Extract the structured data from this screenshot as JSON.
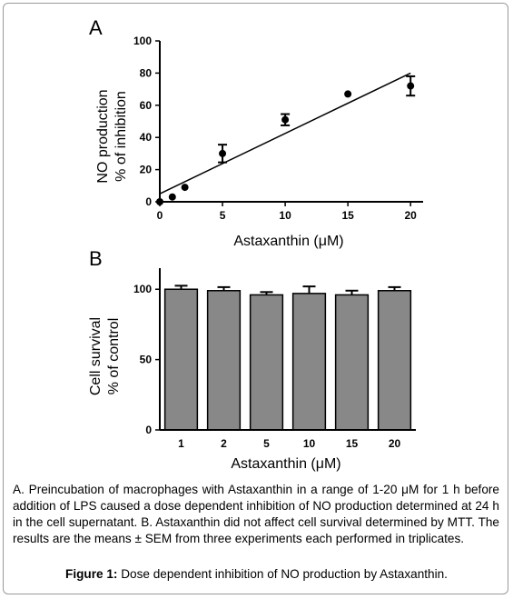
{
  "chart_data": [
    {
      "type": "scatter",
      "panel_label": "A",
      "x": [
        0,
        1,
        2,
        5,
        10,
        15,
        20
      ],
      "y": [
        0,
        3,
        9,
        30,
        51,
        67,
        72
      ],
      "yerr": [
        0,
        0,
        0,
        5.5,
        3.5,
        0,
        6
      ],
      "trendline": {
        "x": [
          0,
          20
        ],
        "y": [
          5,
          80
        ]
      },
      "xlabel": "Astaxanthin (μM)",
      "ylabel_line1": "NO production",
      "ylabel_line2": "% of inhibition",
      "xticks": [
        0,
        5,
        10,
        15,
        20
      ],
      "yticks": [
        0,
        20,
        40,
        60,
        80,
        100
      ],
      "xlim": [
        0,
        21
      ],
      "ylim": [
        0,
        100
      ]
    },
    {
      "type": "bar",
      "panel_label": "B",
      "categories": [
        "1",
        "2",
        "5",
        "10",
        "15",
        "20"
      ],
      "values": [
        100,
        99,
        96,
        97,
        96,
        99
      ],
      "yerr": [
        2.5,
        2.5,
        2,
        5,
        3,
        2.5
      ],
      "bar_color": "#888888",
      "xlabel": "Astaxanthin (μM)",
      "ylabel_line1": "Cell survival",
      "ylabel_line2": "% of control",
      "yticks": [
        0,
        50,
        100
      ],
      "ylim": [
        0,
        115
      ]
    }
  ],
  "caption": "A. Preincubation of macrophages with Astaxanthin in a range of 1-20 μM for 1 h before addition of LPS caused a dose dependent inhibition of NO production determined at 24 h in the cell supernatant. B. Astaxanthin did not affect cell survival determined by MTT. The results are the means ± SEM from three experiments each performed in triplicates.",
  "figure_label": "Figure 1:",
  "figure_title": "Dose dependent inhibition of NO production by Astaxanthin."
}
